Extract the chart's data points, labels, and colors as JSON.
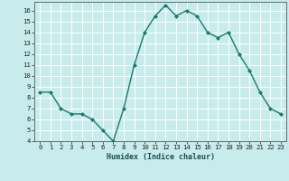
{
  "x": [
    0,
    1,
    2,
    3,
    4,
    5,
    6,
    7,
    8,
    9,
    10,
    11,
    12,
    13,
    14,
    15,
    16,
    17,
    18,
    19,
    20,
    21,
    22,
    23
  ],
  "y": [
    8.5,
    8.5,
    7.0,
    6.5,
    6.5,
    6.0,
    5.0,
    4.0,
    7.0,
    11.0,
    14.0,
    15.5,
    16.5,
    15.5,
    16.0,
    15.5,
    14.0,
    13.5,
    14.0,
    12.0,
    10.5,
    8.5,
    7.0,
    6.5
  ],
  "xlabel": "Humidex (Indice chaleur)",
  "ylim_min": 4,
  "ylim_max": 16.8,
  "xlim_min": -0.5,
  "xlim_max": 23.5,
  "yticks": [
    4,
    5,
    6,
    7,
    8,
    9,
    10,
    11,
    12,
    13,
    14,
    15,
    16
  ],
  "xticks": [
    0,
    1,
    2,
    3,
    4,
    5,
    6,
    7,
    8,
    9,
    10,
    11,
    12,
    13,
    14,
    15,
    16,
    17,
    18,
    19,
    20,
    21,
    22,
    23
  ],
  "line_color": "#1a7a6e",
  "marker_color": "#1a7a6e",
  "bg_color": "#c8ecec",
  "grid_color": "#ffffff",
  "xlabel_fontsize": 6.0,
  "tick_fontsize": 5.2
}
